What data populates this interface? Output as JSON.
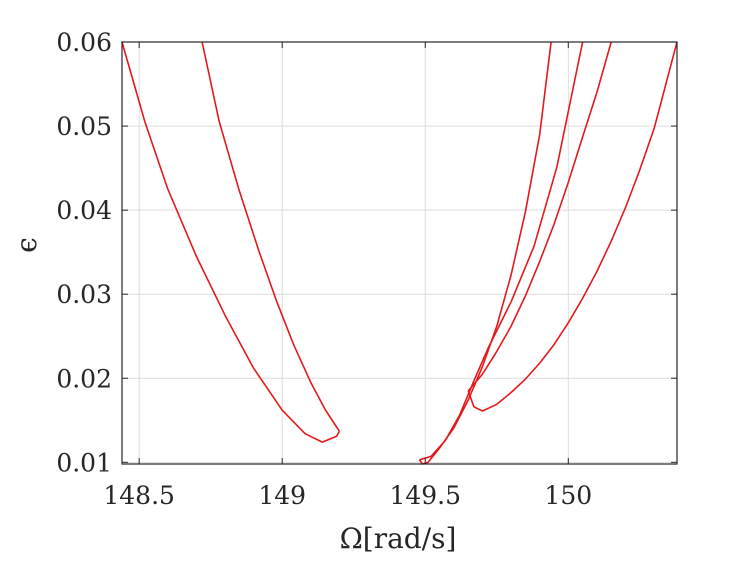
{
  "chart_data": {
    "type": "line",
    "title": "",
    "xlabel": "Ω[rad/s]",
    "ylabel": "ϵ",
    "xlim": [
      148.44,
      150.38
    ],
    "ylim": [
      0.0098,
      0.06
    ],
    "grid": true,
    "line_color": "#e31a1c",
    "x_ticks": [
      148.5,
      149,
      149.5,
      150
    ],
    "x_tick_labels": [
      "148.5",
      "149",
      "149.5",
      "150"
    ],
    "y_ticks": [
      0.01,
      0.02,
      0.03,
      0.04,
      0.05,
      0.06
    ],
    "y_tick_labels": [
      "0.01",
      "0.02",
      "0.03",
      "0.04",
      "0.05",
      "0.06"
    ],
    "series": [
      {
        "x": [
          148.44,
          148.52,
          148.6,
          148.7,
          148.8,
          148.9,
          149.0,
          149.08,
          149.14,
          149.19,
          149.2
        ],
        "y": [
          0.06,
          0.0505,
          0.0425,
          0.0345,
          0.0275,
          0.0212,
          0.0162,
          0.0134,
          0.0124,
          0.0131,
          0.0137
        ]
      },
      {
        "x": [
          148.72,
          148.78,
          148.85,
          148.92,
          148.98,
          149.04,
          149.1,
          149.15,
          149.19,
          149.2
        ],
        "y": [
          0.06,
          0.0505,
          0.0423,
          0.035,
          0.0292,
          0.024,
          0.0195,
          0.0163,
          0.0142,
          0.0137
        ]
      },
      {
        "x": [
          149.48,
          149.49,
          149.51,
          149.55,
          149.6,
          149.65,
          149.7,
          149.75,
          149.8,
          149.85,
          149.9,
          149.94
        ],
        "y": [
          0.0103,
          0.0098,
          0.01,
          0.0117,
          0.0141,
          0.0174,
          0.0214,
          0.0262,
          0.0323,
          0.0398,
          0.049,
          0.06
        ]
      },
      {
        "x": [
          149.48,
          149.52,
          149.57,
          149.62,
          149.67,
          149.72,
          149.8,
          149.88,
          149.96,
          150.05
        ],
        "y": [
          0.0103,
          0.0107,
          0.0126,
          0.0156,
          0.0197,
          0.0236,
          0.0291,
          0.0357,
          0.0451,
          0.06
        ]
      },
      {
        "x": [
          149.65,
          149.7,
          149.75,
          149.8,
          149.85,
          149.9,
          149.95,
          150.0,
          150.05,
          150.1,
          150.15
        ],
        "y": [
          0.0185,
          0.0205,
          0.0232,
          0.0262,
          0.0298,
          0.0339,
          0.0383,
          0.0433,
          0.0487,
          0.054,
          0.06
        ]
      },
      {
        "x": [
          149.65,
          149.67,
          149.7,
          149.75,
          149.8,
          149.85,
          149.9,
          149.95,
          150.0,
          150.05,
          150.1,
          150.15,
          150.2,
          150.25,
          150.3,
          150.38
        ],
        "y": [
          0.0185,
          0.0166,
          0.0161,
          0.0169,
          0.0183,
          0.0199,
          0.0218,
          0.024,
          0.0266,
          0.0295,
          0.0327,
          0.0363,
          0.0403,
          0.0448,
          0.0497,
          0.06
        ]
      }
    ]
  }
}
